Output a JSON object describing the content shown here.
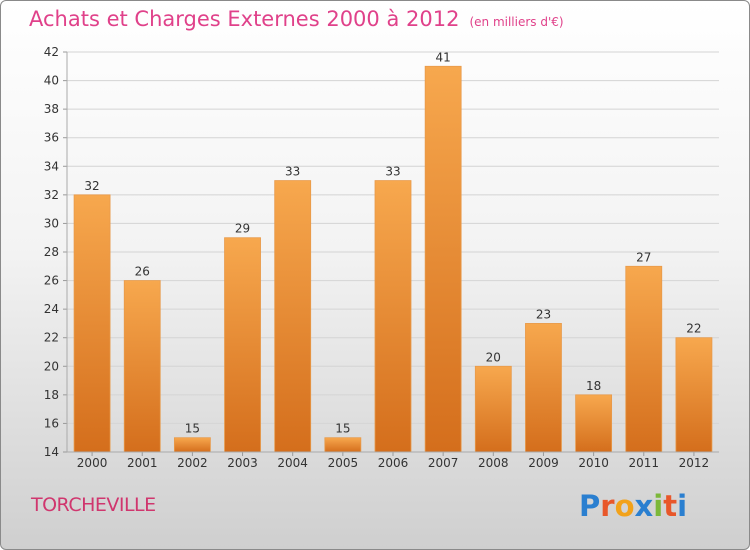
{
  "chart_data": {
    "type": "bar",
    "title": "Achats et Charges Externes 2000 à 2012",
    "subtitle": "(en milliers d'€)",
    "categories": [
      "2000",
      "2001",
      "2002",
      "2003",
      "2004",
      "2005",
      "2006",
      "2007",
      "2008",
      "2009",
      "2010",
      "2011",
      "2012"
    ],
    "values": [
      32,
      26,
      15,
      29,
      33,
      15,
      33,
      41,
      20,
      23,
      18,
      27,
      22
    ],
    "ylim": [
      14,
      42
    ],
    "yticks": [
      "14",
      "16",
      "18",
      "20",
      "22",
      "24",
      "26",
      "28",
      "30",
      "32",
      "34",
      "36",
      "38",
      "40",
      "42"
    ],
    "grid": true,
    "bar_color_top": "#f7a84e",
    "bar_color_bottom": "#d46e1c"
  },
  "location": "TORCHEVILLE",
  "brand": {
    "letters": [
      "P",
      "r",
      "o",
      "x",
      "i",
      "t",
      "i"
    ],
    "colors": [
      "#2a7fd0",
      "#e8572a",
      "#f2a21a",
      "#2a7fd0",
      "#7cb83a",
      "#e8572a",
      "#2a7fd0"
    ]
  }
}
